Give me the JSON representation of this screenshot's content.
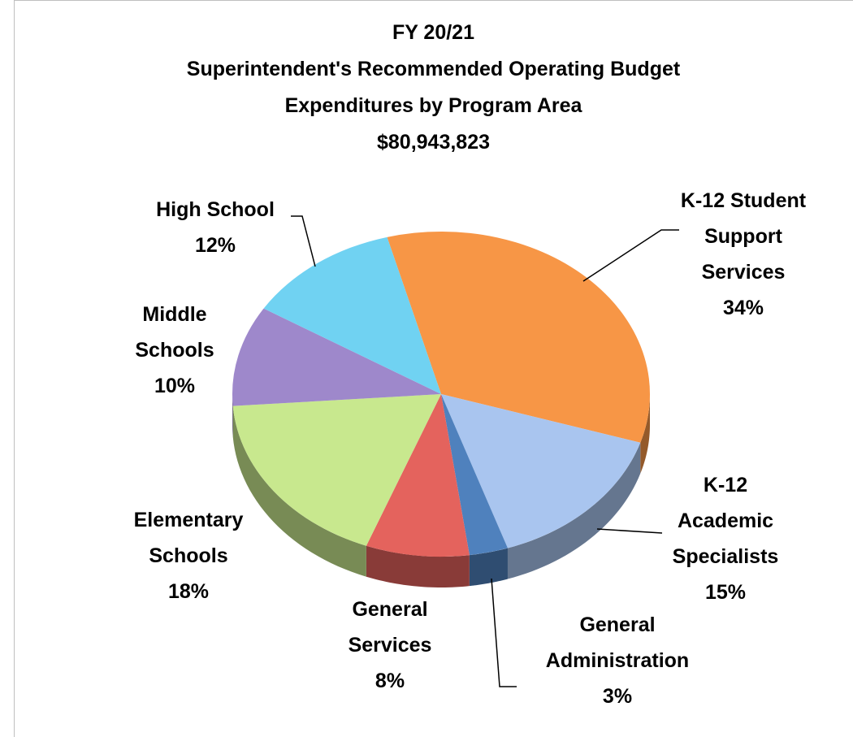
{
  "chart_data": {
    "type": "pie",
    "title": [
      "FY 20/21",
      "Superintendent's Recommended Operating Budget",
      "Expenditures by Program Area",
      "$80,943,823"
    ],
    "categories": [
      "K-12 Student\nSupport\nServices",
      "K-12\nAcademic\nSpecialists",
      "General\nAdministration",
      "General\nServices",
      "Elementary\nSchools",
      "Middle\nSchools",
      "High School"
    ],
    "values": [
      34,
      15,
      3,
      8,
      18,
      10,
      12
    ],
    "value_labels": [
      "34%",
      "15%",
      "3%",
      "8%",
      "18%",
      "10%",
      "12%"
    ],
    "colors": [
      "#f79646",
      "#a9c5ef",
      "#4f81bd",
      "#e4635d",
      "#c8e88e",
      "#9e88cb",
      "#70d2f2"
    ]
  }
}
